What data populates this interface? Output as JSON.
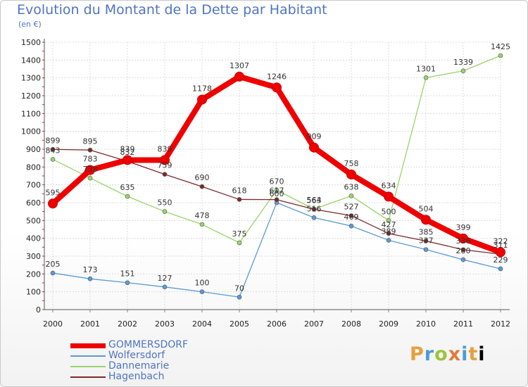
{
  "chart_data": {
    "type": "line",
    "title": "Evolution du Montant de la Dette par Habitant",
    "subtitle": "(en €)",
    "x": [
      "2000",
      "2001",
      "2002",
      "2003",
      "2004",
      "2005",
      "2006",
      "2007",
      "2008",
      "2009",
      "2010",
      "2011",
      "2012"
    ],
    "ylim": [
      0,
      1500
    ],
    "yticks": [
      0,
      100,
      200,
      300,
      400,
      500,
      600,
      700,
      800,
      900,
      1000,
      1100,
      1200,
      1300,
      1400,
      1500
    ],
    "grid": true,
    "legend_position": "bottom-left",
    "series": [
      {
        "name": "GOMMERSDORF",
        "color": "#ee0000",
        "values": [
          595,
          783,
          839,
          839,
          1178,
          1307,
          1246,
          909,
          758,
          634,
          504,
          399,
          322
        ]
      },
      {
        "name": "Wolfersdorf",
        "color": "#5b9bd5",
        "values": [
          205,
          173,
          151,
          127,
          100,
          70,
          600,
          516,
          469,
          389,
          337,
          280,
          229
        ]
      },
      {
        "name": "Dannemarie",
        "color": "#9ad36a",
        "values": [
          843,
          738,
          635,
          550,
          478,
          375,
          670,
          564,
          638,
          500,
          1301,
          1339,
          1425
        ]
      },
      {
        "name": "Hagenbach",
        "color": "#7a2a2a",
        "values": [
          899,
          895,
          832,
          759,
          690,
          618,
          617,
          563,
          527,
          427,
          385,
          336,
          311
        ]
      }
    ]
  },
  "logo": {
    "text": "Proxiti",
    "letters": [
      "P",
      "r",
      "o",
      "x",
      "i",
      "t",
      "i"
    ]
  }
}
